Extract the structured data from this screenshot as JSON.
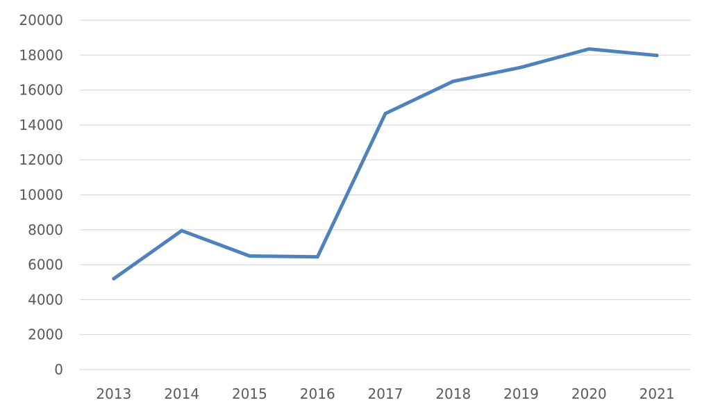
{
  "chart_data": {
    "type": "line",
    "title": "",
    "xlabel": "",
    "ylabel": "",
    "categories": [
      "2013",
      "2014",
      "2015",
      "2016",
      "2017",
      "2018",
      "2019",
      "2020",
      "2021"
    ],
    "series": [
      {
        "values": [
          5200,
          7950,
          6500,
          6450,
          14650,
          16500,
          17300,
          18350,
          17980
        ],
        "color": "#4f81bd"
      }
    ],
    "ylim": [
      0,
      20000
    ],
    "yticks": [
      0,
      2000,
      4000,
      6000,
      8000,
      10000,
      12000,
      14000,
      16000,
      18000,
      20000
    ],
    "ytick_labels": [
      "0",
      "2000",
      "4000",
      "6000",
      "8000",
      "10000",
      "12000",
      "14000",
      "16000",
      "18000",
      "20000"
    ],
    "grid": "horizontal",
    "legend": "none"
  }
}
